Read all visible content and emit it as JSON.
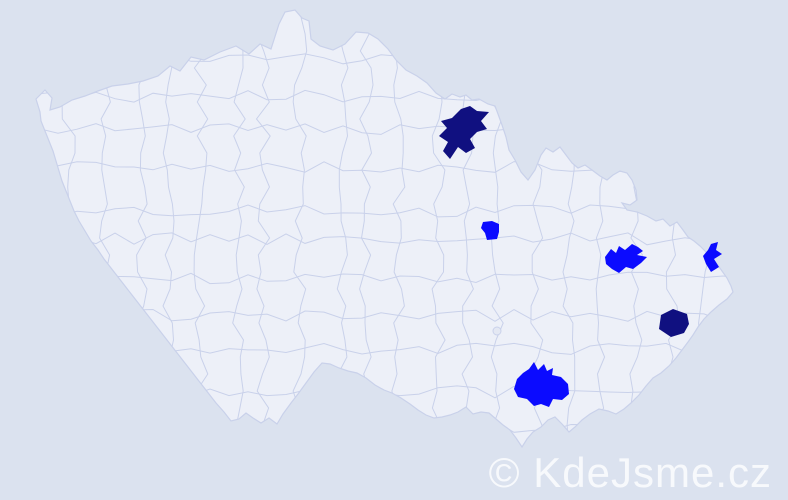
{
  "watermark": {
    "text": "© KdeJsme.cz",
    "color": "rgba(255,255,255,0.78)"
  },
  "map": {
    "colors": {
      "background": "#dbe2ef",
      "land": "#edf0f8",
      "district_border": "#c9d1ea",
      "highlight_dark": "#101080",
      "highlight_bright": "#0b0bff"
    },
    "highlighted_districts": [
      {
        "region": "northeast-border",
        "color": "#101080"
      },
      {
        "region": "center-east-small",
        "color": "#0b0bff"
      },
      {
        "region": "east-moravia-north",
        "color": "#0b0bff"
      },
      {
        "region": "far-east-border",
        "color": "#0b0bff"
      },
      {
        "region": "southeast",
        "color": "#101080"
      },
      {
        "region": "south-moravia",
        "color": "#0b0bff"
      }
    ]
  }
}
